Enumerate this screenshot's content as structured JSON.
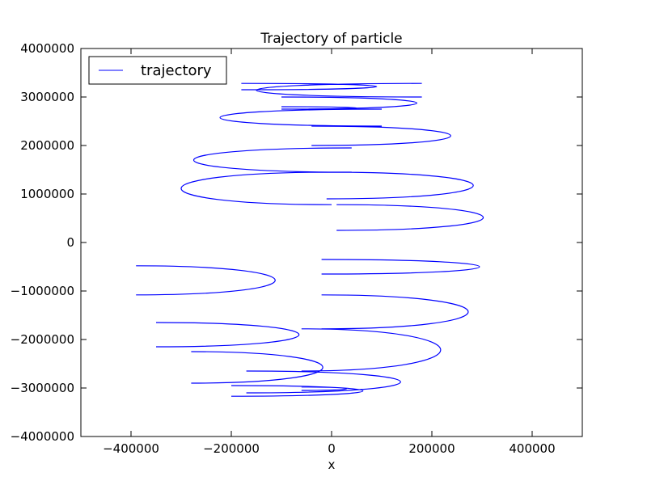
{
  "chart_data": {
    "type": "line",
    "title": "Trajectory of particle",
    "xlabel": "x",
    "ylabel": "",
    "xlim": [
      -500000,
      500000
    ],
    "ylim": [
      -4000000,
      4000000
    ],
    "xticks": [
      -400000,
      -200000,
      0,
      200000,
      400000
    ],
    "xtick_labels": [
      "−400000",
      "−200000",
      "0",
      "200000",
      "400000"
    ],
    "yticks": [
      -4000000,
      -3000000,
      -2000000,
      -1000000,
      0,
      1000000,
      2000000,
      3000000,
      4000000
    ],
    "ytick_labels": [
      "−4000000",
      "−3000000",
      "−2000000",
      "−1000000",
      "0",
      "1000000",
      "2000000",
      "3000000",
      "4000000"
    ],
    "grid": false,
    "legend_position": "top-left",
    "series": [
      {
        "name": "trajectory",
        "color": "#0000ff",
        "loops": [
          {
            "ya": -350000,
            "yb": -650000,
            "xr": 400000,
            "xl": -20000
          },
          {
            "ya": -480000,
            "yb": -1080000,
            "xr": -20000,
            "xl": -390000
          },
          {
            "ya": -1080000,
            "yb": -1780000,
            "xr": 370000,
            "xl": -20000
          },
          {
            "ya": -1650000,
            "yb": -2150000,
            "xr": 30000,
            "xl": -350000
          },
          {
            "ya": -1780000,
            "yb": -2650000,
            "xr": 310000,
            "xl": -60000
          },
          {
            "ya": -2250000,
            "yb": -2900000,
            "xr": 70000,
            "xl": -280000
          },
          {
            "ya": -2650000,
            "yb": -3100000,
            "xr": 240000,
            "xl": -170000
          },
          {
            "ya": -2950000,
            "yb": -3170000,
            "xr": 150000,
            "xl": -200000
          },
          {
            "ya": -3050000,
            "yb": -2980000,
            "xr": 60000,
            "xl": -60000
          },
          {
            "ya": 250000,
            "yb": 780000,
            "xr": 400000,
            "xl": 10000
          },
          {
            "ya": 780000,
            "yb": 1450000,
            "xr": -400000,
            "xl": 0
          },
          {
            "ya": 900000,
            "yb": 1450000,
            "xr": 380000,
            "xl": -10000
          },
          {
            "ya": 1450000,
            "yb": 1950000,
            "xr": -380000,
            "xl": 40000
          },
          {
            "ya": 2000000,
            "yb": 2400000,
            "xr": 330000,
            "xl": -40000
          },
          {
            "ya": 2400000,
            "yb": 2750000,
            "xr": -330000,
            "xl": 100000
          },
          {
            "ya": 2750000,
            "yb": 3000000,
            "xr": 260000,
            "xl": -100000
          },
          {
            "ya": 3000000,
            "yb": 3280000,
            "xr": -260000,
            "xl": 180000
          },
          {
            "ya": 3280000,
            "yb": 3150000,
            "xr": 180000,
            "xl": -180000
          },
          {
            "ya": 2800000,
            "yb": 2750000,
            "xr": 100000,
            "xl": -100000
          }
        ]
      }
    ]
  }
}
